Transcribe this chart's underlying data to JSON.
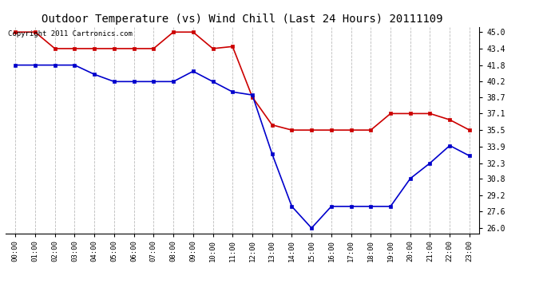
{
  "title": "Outdoor Temperature (vs) Wind Chill (Last 24 Hours) 20111109",
  "copyright_text": "Copyright 2011 Cartronics.com",
  "x_labels": [
    "00:00",
    "01:00",
    "02:00",
    "03:00",
    "04:00",
    "05:00",
    "06:00",
    "07:00",
    "08:00",
    "09:00",
    "10:00",
    "11:00",
    "12:00",
    "13:00",
    "14:00",
    "15:00",
    "16:00",
    "17:00",
    "18:00",
    "19:00",
    "20:00",
    "21:00",
    "22:00",
    "23:00"
  ],
  "y_ticks": [
    26.0,
    27.6,
    29.2,
    30.8,
    32.3,
    33.9,
    35.5,
    37.1,
    38.7,
    40.2,
    41.8,
    43.4,
    45.0
  ],
  "ylim": [
    25.5,
    45.5
  ],
  "red_data": [
    45.0,
    45.0,
    43.4,
    43.4,
    43.4,
    43.4,
    43.4,
    43.4,
    45.0,
    45.0,
    43.4,
    43.6,
    38.7,
    36.0,
    35.5,
    35.5,
    35.5,
    35.5,
    35.5,
    37.1,
    37.1,
    37.1,
    36.5,
    35.5
  ],
  "blue_data": [
    41.8,
    41.8,
    41.8,
    41.8,
    40.9,
    40.2,
    40.2,
    40.2,
    40.2,
    41.2,
    40.2,
    39.2,
    38.9,
    33.2,
    28.1,
    26.0,
    28.1,
    28.1,
    28.1,
    28.1,
    30.8,
    32.3,
    34.0,
    33.0
  ],
  "red_color": "#cc0000",
  "blue_color": "#0000cc",
  "bg_color": "#ffffff",
  "grid_color": "#bbbbbb",
  "title_fontsize": 10,
  "copyright_fontsize": 6.5
}
